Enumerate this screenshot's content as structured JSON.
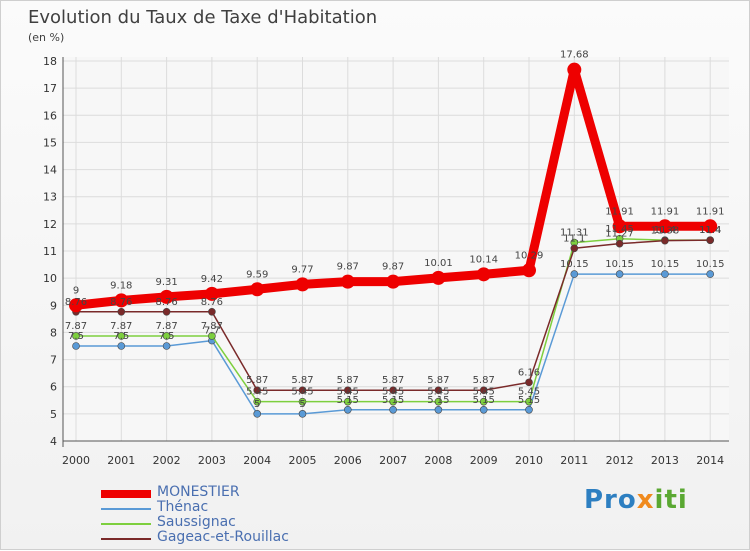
{
  "chart_data": {
    "type": "line",
    "title": "Evolution du Taux de Taxe d'Habitation",
    "subtitle": "(en %)",
    "x": [
      "2000",
      "2001",
      "2002",
      "2003",
      "2004",
      "2005",
      "2006",
      "2007",
      "2008",
      "2009",
      "2010",
      "2011",
      "2012",
      "2013",
      "2014"
    ],
    "yticks": [
      "4",
      "5",
      "6",
      "7",
      "8",
      "9",
      "10",
      "11",
      "12",
      "13",
      "14",
      "15",
      "16",
      "17",
      "18"
    ],
    "ylim": [
      4,
      18
    ],
    "grid": true,
    "legend_position": "bottom-left",
    "series": [
      {
        "name": "MONESTIER",
        "color": "#ee0000",
        "values": [
          9,
          9.18,
          9.31,
          9.42,
          9.59,
          9.77,
          9.87,
          9.87,
          10.01,
          10.14,
          10.29,
          17.68,
          11.91,
          11.91,
          11.91
        ],
        "labels": [
          "9",
          "9.18",
          "9.31",
          "9.42",
          "9.59",
          "9.77",
          "9.87",
          "9.87",
          "10.01",
          "10.14",
          "10.29",
          "17.68",
          "11.91",
          "11.91",
          "11.91"
        ]
      },
      {
        "name": "Thénac",
        "color": "#5a9ad6",
        "values": [
          7.5,
          7.5,
          7.5,
          7.7,
          5,
          5,
          5.15,
          5.15,
          5.15,
          5.15,
          5.15,
          10.15,
          10.15,
          10.15,
          10.15
        ],
        "labels": [
          "7.5",
          "7.5",
          "7.5",
          "7.7",
          "5",
          "5",
          "5.15",
          "5.15",
          "5.15",
          "5.15",
          "5.15",
          "10.15",
          "10.15",
          "10.15",
          "10.15"
        ]
      },
      {
        "name": "Saussignac",
        "color": "#7dcf3e",
        "values": [
          7.87,
          7.87,
          7.87,
          7.87,
          5.45,
          5.45,
          5.45,
          5.45,
          5.45,
          5.45,
          5.45,
          11.31,
          11.45,
          11.4,
          11.4
        ],
        "labels": [
          "7.87",
          "7.87",
          "7.87",
          "7.87",
          "5.45",
          "5.45",
          "5.45",
          "5.45",
          "5.45",
          "5.45",
          "5.45",
          "11.31",
          "11.45",
          "11.4",
          "11.4"
        ]
      },
      {
        "name": "Gageac-et-Rouillac",
        "color": "#7a2a2a",
        "values": [
          8.76,
          8.76,
          8.76,
          8.76,
          5.87,
          5.87,
          5.87,
          5.87,
          5.87,
          5.87,
          6.16,
          11.1,
          11.27,
          11.38,
          11.4
        ],
        "labels": [
          "8.76",
          "8.76",
          "8.76",
          "8.76",
          "5.87",
          "5.87",
          "5.87",
          "5.87",
          "5.87",
          "5.87",
          "6.16",
          "11.1",
          "11.27",
          "11.38",
          "11.4"
        ]
      }
    ]
  },
  "brand": {
    "part1": "Pro",
    "part2": "x",
    "part3": "iti"
  }
}
